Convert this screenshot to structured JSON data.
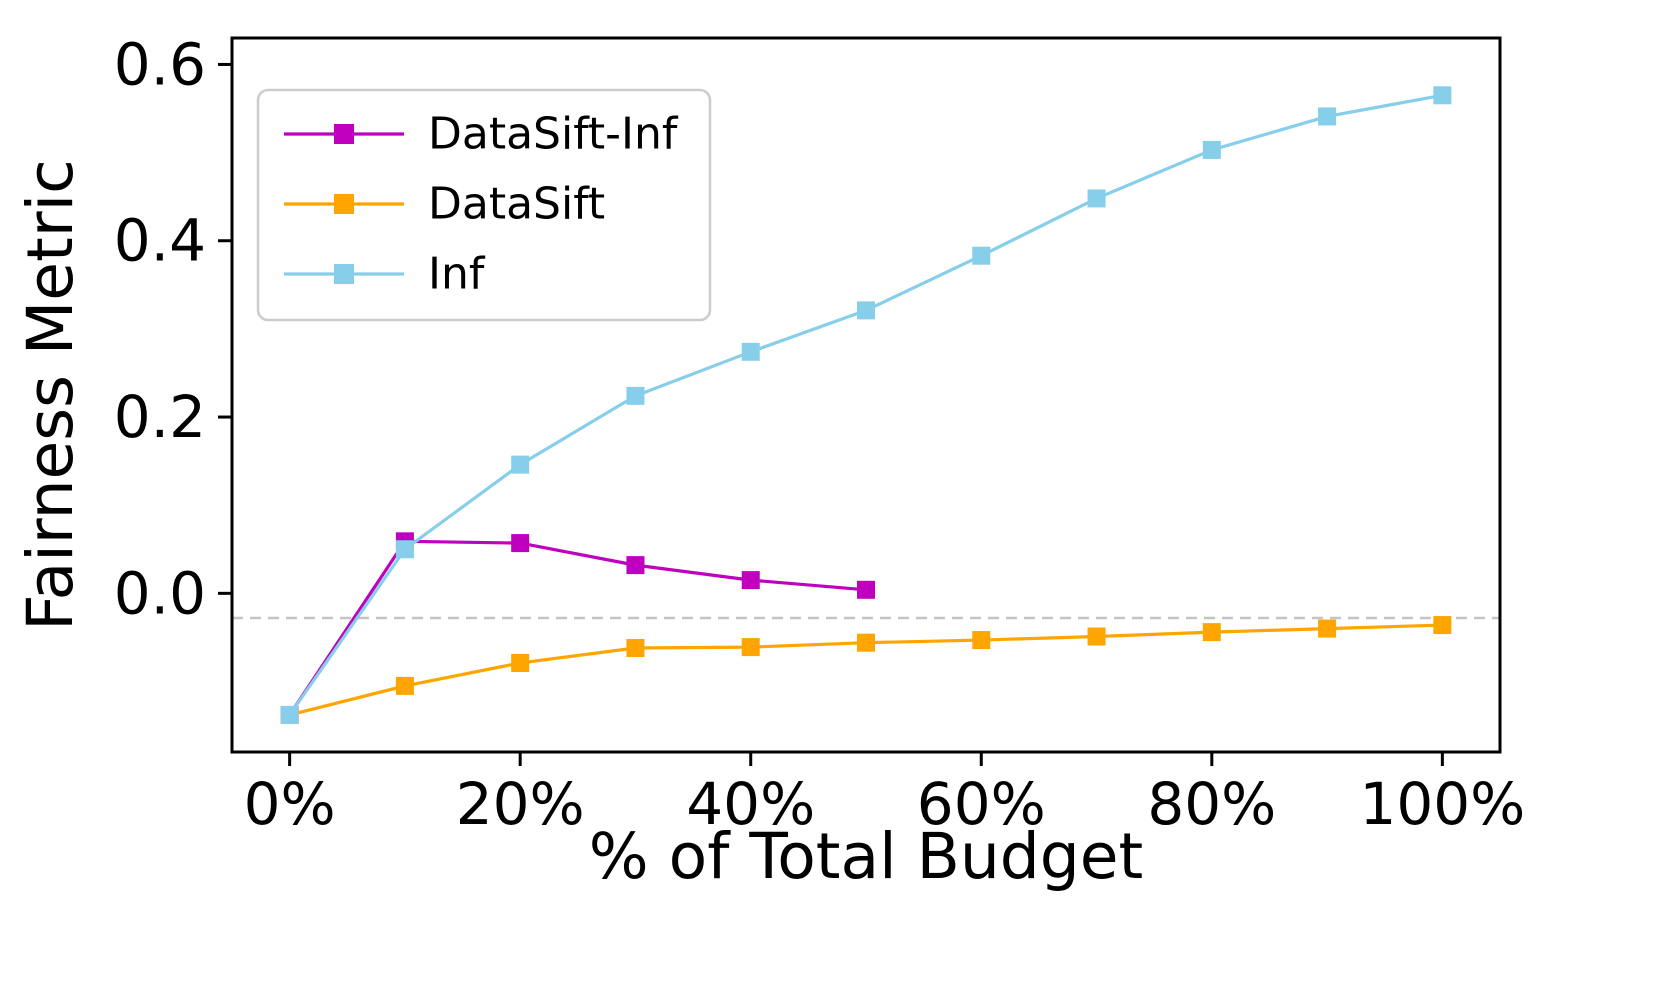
{
  "figure": {
    "background_color": "#ffffff",
    "axis_color": "#000000"
  },
  "chart_data": {
    "type": "line",
    "title": "",
    "xlabel": "% of Total Budget",
    "ylabel": "Fairness Metric",
    "xlim": [
      -5,
      105
    ],
    "ylim": [
      -0.18,
      0.63
    ],
    "x_ticks": [
      0,
      20,
      40,
      60,
      80,
      100
    ],
    "x_tick_labels": [
      "0%",
      "20%",
      "40%",
      "60%",
      "80%",
      "100%"
    ],
    "y_ticks": [
      0.0,
      0.2,
      0.4,
      0.6
    ],
    "y_tick_labels": [
      "0.0",
      "0.2",
      "0.4",
      "0.6"
    ],
    "grid": false,
    "legend_position": "upper-left",
    "reference_line": {
      "y": -0.028,
      "style": "dashed",
      "color": "#c4c4c4"
    },
    "series": [
      {
        "name": "DataSift-Inf",
        "color": "#bf00bf",
        "marker": "square",
        "x": [
          0,
          10,
          20,
          30,
          40,
          50
        ],
        "y": [
          -0.138,
          0.059,
          0.057,
          0.032,
          0.015,
          0.004
        ]
      },
      {
        "name": "DataSift",
        "color": "#ffa500",
        "marker": "square",
        "x": [
          0,
          10,
          20,
          30,
          40,
          50,
          60,
          70,
          80,
          90,
          100
        ],
        "y": [
          -0.138,
          -0.105,
          -0.079,
          -0.062,
          -0.061,
          -0.056,
          -0.053,
          -0.049,
          -0.044,
          -0.04,
          -0.036
        ]
      },
      {
        "name": "Inf",
        "color": "#87ceeb",
        "marker": "square",
        "x": [
          0,
          10,
          20,
          30,
          40,
          50,
          60,
          70,
          80,
          90,
          100
        ],
        "y": [
          -0.138,
          0.05,
          0.146,
          0.224,
          0.274,
          0.321,
          0.383,
          0.448,
          0.503,
          0.541,
          0.565
        ]
      }
    ]
  }
}
